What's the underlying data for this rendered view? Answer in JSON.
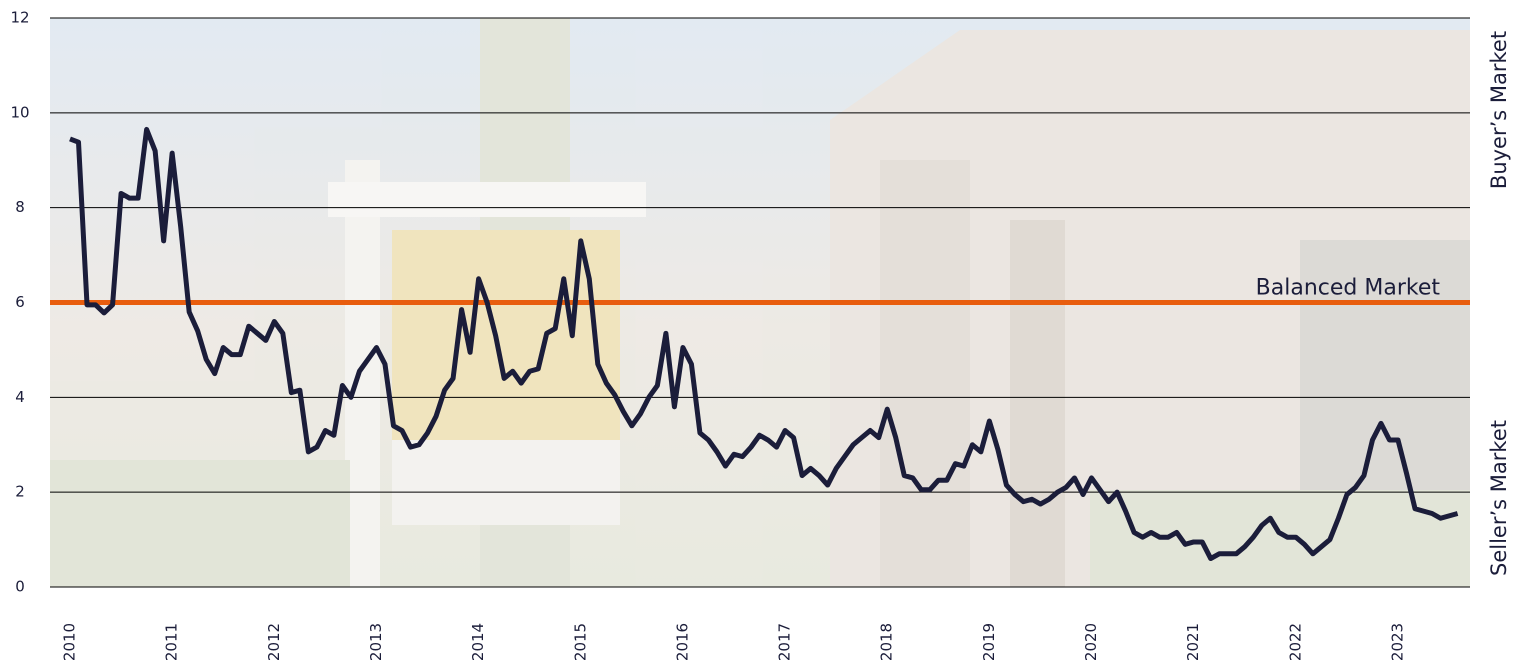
{
  "chart_data": {
    "type": "line",
    "categories": [
      "2010",
      null,
      null,
      null,
      null,
      null,
      null,
      null,
      null,
      null,
      null,
      null,
      "2011",
      null,
      null,
      null,
      null,
      null,
      null,
      null,
      null,
      null,
      null,
      null,
      "2012",
      null,
      null,
      null,
      null,
      null,
      null,
      null,
      null,
      null,
      null,
      null,
      "2013",
      null,
      null,
      null,
      null,
      null,
      null,
      null,
      null,
      null,
      null,
      null,
      "2014",
      null,
      null,
      null,
      null,
      null,
      null,
      null,
      null,
      null,
      null,
      null,
      "2015",
      null,
      null,
      null,
      null,
      null,
      null,
      null,
      null,
      null,
      null,
      null,
      "2016",
      null,
      null,
      null,
      null,
      null,
      null,
      null,
      null,
      null,
      null,
      null,
      "2017",
      null,
      null,
      null,
      null,
      null,
      null,
      null,
      null,
      null,
      null,
      null,
      "2018",
      null,
      null,
      null,
      null,
      null,
      null,
      null,
      null,
      null,
      null,
      null,
      "2019",
      null,
      null,
      null,
      null,
      null,
      null,
      null,
      null,
      null,
      null,
      null,
      "2020",
      null,
      null,
      null,
      null,
      null,
      null,
      null,
      null,
      null,
      null,
      null,
      "2021",
      null,
      null,
      null,
      null,
      null,
      null,
      null,
      null,
      null,
      null,
      null,
      "2022",
      null,
      null,
      null,
      null,
      null,
      null,
      null,
      null,
      null,
      null,
      null,
      "2023",
      null,
      null,
      null,
      null,
      null,
      null,
      null
    ],
    "values": [
      9.45,
      9.38,
      5.95,
      5.95,
      5.78,
      5.95,
      8.3,
      8.2,
      8.2,
      9.65,
      9.2,
      7.3,
      9.15,
      7.6,
      5.8,
      5.4,
      4.8,
      4.5,
      5.05,
      4.9,
      4.9,
      5.5,
      5.35,
      5.2,
      5.6,
      5.35,
      4.1,
      4.15,
      2.85,
      2.95,
      3.3,
      3.2,
      4.25,
      4.0,
      4.55,
      4.8,
      5.05,
      4.7,
      3.4,
      3.3,
      2.95,
      3.0,
      3.25,
      3.6,
      4.15,
      4.4,
      5.85,
      4.95,
      6.5,
      6.0,
      5.3,
      4.4,
      4.55,
      4.3,
      4.55,
      4.6,
      5.35,
      5.45,
      6.5,
      5.3,
      7.3,
      6.5,
      4.7,
      4.3,
      4.05,
      3.7,
      3.4,
      3.65,
      4.0,
      4.25,
      5.35,
      3.8,
      5.05,
      4.7,
      3.25,
      3.1,
      2.85,
      2.55,
      2.8,
      2.75,
      2.95,
      3.2,
      3.1,
      2.95,
      3.3,
      3.15,
      2.35,
      2.5,
      2.35,
      2.15,
      2.5,
      2.75,
      3.0,
      3.15,
      3.3,
      3.15,
      3.75,
      3.15,
      2.35,
      2.3,
      2.05,
      2.05,
      2.25,
      2.25,
      2.6,
      2.55,
      3.0,
      2.85,
      3.5,
      2.9,
      2.15,
      1.95,
      1.8,
      1.85,
      1.75,
      1.85,
      2.0,
      2.1,
      2.3,
      1.95,
      2.3,
      2.05,
      1.8,
      2.0,
      1.6,
      1.15,
      1.05,
      1.15,
      1.05,
      1.05,
      1.15,
      0.9,
      0.95,
      0.95,
      0.6,
      0.7,
      0.7,
      0.7,
      0.85,
      1.05,
      1.3,
      1.45,
      1.15,
      1.05,
      1.05,
      0.9,
      0.7,
      0.85,
      1.0,
      1.45,
      1.95,
      2.1,
      2.35,
      3.1,
      3.45,
      3.1,
      3.1,
      2.4,
      1.65,
      1.6,
      1.55,
      1.45,
      1.5,
      1.55
    ],
    "color": "#1b1d3a",
    "ylim": [
      0,
      12
    ],
    "yticks": [
      0,
      2,
      4,
      6,
      8,
      10,
      12
    ],
    "grid": true,
    "reference_line": {
      "value": 6,
      "label": "Balanced Market",
      "color": "#e85d0e"
    },
    "side_labels": {
      "top": "Buyer’s Market",
      "bottom": "Seller’s Market"
    }
  }
}
